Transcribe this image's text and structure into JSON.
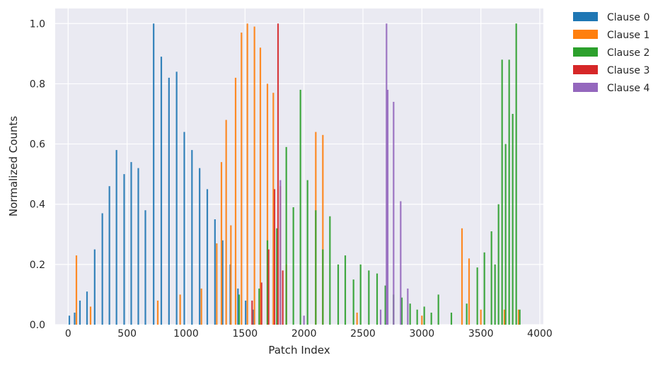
{
  "chart_data": {
    "type": "bar",
    "title": "",
    "xlabel": "Patch Index",
    "ylabel": "Normalized Counts",
    "xlim": [
      -110,
      4030
    ],
    "ylim": [
      0,
      1.05
    ],
    "x_ticks": [
      0,
      500,
      1000,
      1500,
      2000,
      2500,
      3000,
      3500,
      4000
    ],
    "x_tick_labels": [
      "0",
      "500",
      "1000",
      "1500",
      "2000",
      "2500",
      "3000",
      "3500",
      "4000"
    ],
    "y_ticks": [
      0,
      0.2,
      0.4,
      0.6,
      0.8,
      1.0
    ],
    "y_tick_labels": [
      "0.0",
      "0.2",
      "0.4",
      "0.6",
      "0.8",
      "1.0"
    ],
    "grid": true,
    "legend_position": "outside-top-right",
    "series": [
      {
        "name": "Clause 0",
        "color": "#1f77b4",
        "peaks": [
          {
            "x": 10,
            "y": 0.03
          },
          {
            "x": 55,
            "y": 0.04
          },
          {
            "x": 100,
            "y": 0.08
          },
          {
            "x": 160,
            "y": 0.11
          },
          {
            "x": 225,
            "y": 0.25
          },
          {
            "x": 290,
            "y": 0.37
          },
          {
            "x": 350,
            "y": 0.46
          },
          {
            "x": 410,
            "y": 0.58
          },
          {
            "x": 475,
            "y": 0.5
          },
          {
            "x": 535,
            "y": 0.54
          },
          {
            "x": 595,
            "y": 0.52
          },
          {
            "x": 655,
            "y": 0.38
          },
          {
            "x": 725,
            "y": 1.0
          },
          {
            "x": 790,
            "y": 0.89
          },
          {
            "x": 855,
            "y": 0.82
          },
          {
            "x": 920,
            "y": 0.84
          },
          {
            "x": 985,
            "y": 0.64
          },
          {
            "x": 1050,
            "y": 0.58
          },
          {
            "x": 1115,
            "y": 0.52
          },
          {
            "x": 1180,
            "y": 0.45
          },
          {
            "x": 1245,
            "y": 0.35
          },
          {
            "x": 1310,
            "y": 0.28
          },
          {
            "x": 1375,
            "y": 0.2
          },
          {
            "x": 1440,
            "y": 0.12
          },
          {
            "x": 1505,
            "y": 0.08
          },
          {
            "x": 1570,
            "y": 0.05
          }
        ]
      },
      {
        "name": "Clause 1",
        "color": "#ff7f0e",
        "peaks": [
          {
            "x": 70,
            "y": 0.23
          },
          {
            "x": 190,
            "y": 0.06
          },
          {
            "x": 760,
            "y": 0.08
          },
          {
            "x": 950,
            "y": 0.1
          },
          {
            "x": 1130,
            "y": 0.12
          },
          {
            "x": 1260,
            "y": 0.27
          },
          {
            "x": 1300,
            "y": 0.54
          },
          {
            "x": 1340,
            "y": 0.68
          },
          {
            "x": 1380,
            "y": 0.33
          },
          {
            "x": 1420,
            "y": 0.82
          },
          {
            "x": 1470,
            "y": 0.97
          },
          {
            "x": 1520,
            "y": 1.0
          },
          {
            "x": 1580,
            "y": 0.99
          },
          {
            "x": 1630,
            "y": 0.92
          },
          {
            "x": 1690,
            "y": 0.8
          },
          {
            "x": 1740,
            "y": 0.77
          },
          {
            "x": 1800,
            "y": 0.46
          },
          {
            "x": 1850,
            "y": 0.2
          },
          {
            "x": 2100,
            "y": 0.64
          },
          {
            "x": 2160,
            "y": 0.63
          },
          {
            "x": 2450,
            "y": 0.04
          },
          {
            "x": 3000,
            "y": 0.03
          },
          {
            "x": 3340,
            "y": 0.32
          },
          {
            "x": 3400,
            "y": 0.22
          },
          {
            "x": 3500,
            "y": 0.05
          },
          {
            "x": 3700,
            "y": 0.05
          },
          {
            "x": 3820,
            "y": 0.05
          }
        ]
      },
      {
        "name": "Clause 2",
        "color": "#2ca02c",
        "peaks": [
          {
            "x": 1450,
            "y": 0.1
          },
          {
            "x": 1620,
            "y": 0.12
          },
          {
            "x": 1690,
            "y": 0.28
          },
          {
            "x": 1770,
            "y": 0.32
          },
          {
            "x": 1850,
            "y": 0.59
          },
          {
            "x": 1910,
            "y": 0.39
          },
          {
            "x": 1970,
            "y": 0.78
          },
          {
            "x": 2030,
            "y": 0.48
          },
          {
            "x": 2100,
            "y": 0.38
          },
          {
            "x": 2160,
            "y": 0.25
          },
          {
            "x": 2220,
            "y": 0.36
          },
          {
            "x": 2290,
            "y": 0.2
          },
          {
            "x": 2350,
            "y": 0.23
          },
          {
            "x": 2420,
            "y": 0.15
          },
          {
            "x": 2480,
            "y": 0.2
          },
          {
            "x": 2550,
            "y": 0.18
          },
          {
            "x": 2620,
            "y": 0.17
          },
          {
            "x": 2690,
            "y": 0.13
          },
          {
            "x": 2760,
            "y": 0.1
          },
          {
            "x": 2830,
            "y": 0.09
          },
          {
            "x": 2900,
            "y": 0.07
          },
          {
            "x": 2960,
            "y": 0.05
          },
          {
            "x": 3020,
            "y": 0.06
          },
          {
            "x": 3080,
            "y": 0.04
          },
          {
            "x": 3140,
            "y": 0.1
          },
          {
            "x": 3250,
            "y": 0.04
          },
          {
            "x": 3380,
            "y": 0.07
          },
          {
            "x": 3470,
            "y": 0.19
          },
          {
            "x": 3530,
            "y": 0.24
          },
          {
            "x": 3590,
            "y": 0.31
          },
          {
            "x": 3620,
            "y": 0.2
          },
          {
            "x": 3650,
            "y": 0.4
          },
          {
            "x": 3680,
            "y": 0.88
          },
          {
            "x": 3710,
            "y": 0.6
          },
          {
            "x": 3740,
            "y": 0.88
          },
          {
            "x": 3770,
            "y": 0.7
          },
          {
            "x": 3800,
            "y": 1.0
          },
          {
            "x": 3830,
            "y": 0.05
          }
        ]
      },
      {
        "name": "Clause 3",
        "color": "#d62728",
        "peaks": [
          {
            "x": 1560,
            "y": 0.08
          },
          {
            "x": 1640,
            "y": 0.14
          },
          {
            "x": 1700,
            "y": 0.25
          },
          {
            "x": 1750,
            "y": 0.45
          },
          {
            "x": 1780,
            "y": 1.0
          },
          {
            "x": 1820,
            "y": 0.18
          }
        ]
      },
      {
        "name": "Clause 4",
        "color": "#9467bd",
        "peaks": [
          {
            "x": 1800,
            "y": 0.48
          },
          {
            "x": 2000,
            "y": 0.03
          },
          {
            "x": 2650,
            "y": 0.05
          },
          {
            "x": 2700,
            "y": 1.0
          },
          {
            "x": 2710,
            "y": 0.78
          },
          {
            "x": 2760,
            "y": 0.74
          },
          {
            "x": 2820,
            "y": 0.41
          },
          {
            "x": 2880,
            "y": 0.12
          }
        ]
      }
    ]
  }
}
